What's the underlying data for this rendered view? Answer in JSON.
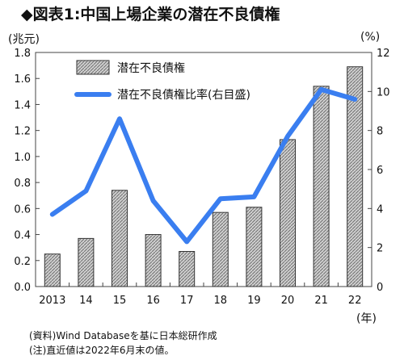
{
  "title": "◆図表1:中国上場企業の潜在不良債権",
  "unit_left": "(兆元)",
  "unit_right": "(%)",
  "year_unit": "(年)",
  "source": "(資料)Wind Databaseを基に日本総研作成",
  "note": "(注)直近値は2022年6月末の値。",
  "chart_data": {
    "type": "bar",
    "categories": [
      "2013",
      "14",
      "15",
      "16",
      "17",
      "18",
      "19",
      "20",
      "21",
      "22"
    ],
    "series": [
      {
        "name": "潜在不良債権",
        "axis": "left",
        "type": "bar",
        "values": [
          0.25,
          0.37,
          0.74,
          0.4,
          0.27,
          0.57,
          0.61,
          1.13,
          1.54,
          1.69
        ]
      },
      {
        "name": "潜在不良債権比率(右目盛)",
        "axis": "right",
        "type": "line",
        "values": [
          3.7,
          4.9,
          8.6,
          4.4,
          2.3,
          4.5,
          4.6,
          7.7,
          10.1,
          9.6
        ]
      }
    ],
    "left_axis": {
      "ylim": [
        0,
        1.8
      ],
      "ticks": [
        "0.0",
        "0.2",
        "0.4",
        "0.6",
        "0.8",
        "1.0",
        "1.2",
        "1.4",
        "1.6",
        "1.8"
      ]
    },
    "right_axis": {
      "ylim": [
        0,
        12
      ],
      "ticks": [
        "0",
        "2",
        "4",
        "6",
        "8",
        "10",
        "12"
      ]
    },
    "grid": false,
    "legend": "top-left",
    "colors": {
      "bar_fill": "#c8c8c8",
      "bar_hatch": "#6f6f6f",
      "line": "#3a7ef0"
    }
  }
}
